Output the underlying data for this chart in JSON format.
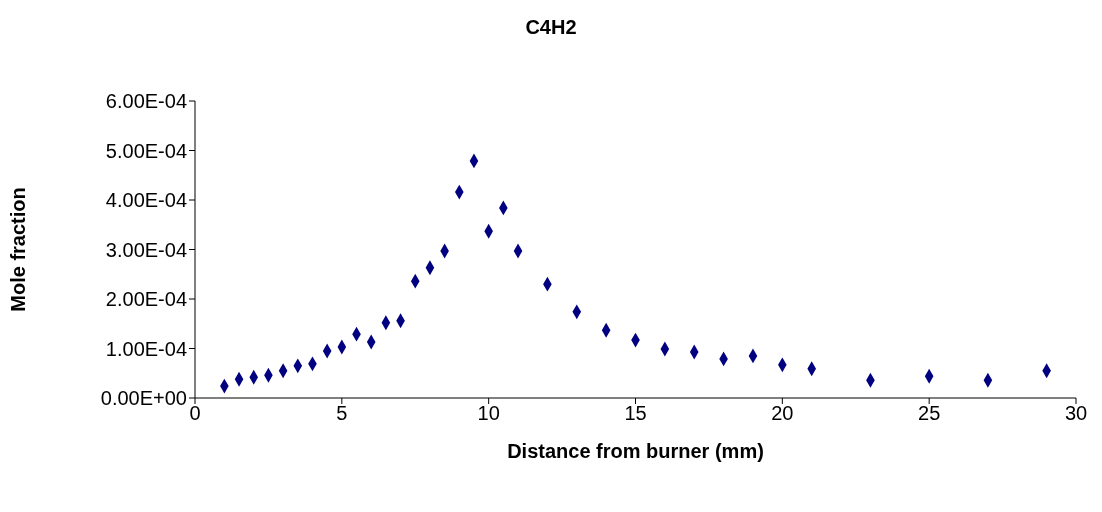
{
  "chart_data": {
    "type": "scatter",
    "title": "C4H2",
    "xlabel": "Distance from burner (mm)",
    "ylabel": "Mole fraction",
    "x": [
      1,
      1.5,
      2,
      2.5,
      3,
      3.5,
      4,
      4.5,
      5,
      5.5,
      6,
      6.5,
      7,
      7.5,
      8,
      8.5,
      9,
      9.5,
      10,
      10.5,
      11,
      12,
      13,
      14,
      15,
      16,
      17,
      18,
      19,
      20,
      21,
      23,
      25,
      27,
      29
    ],
    "series": [
      {
        "color": "#000080",
        "values": [
          2.4e-05,
          3.8e-05,
          4.2e-05,
          4.6e-05,
          5.5e-05,
          6.5e-05,
          6.9e-05,
          9.5e-05,
          0.000103,
          0.000129,
          0.000113,
          0.000152,
          0.000156,
          0.000236,
          0.000263,
          0.000297,
          0.000416,
          0.000479,
          0.000337,
          0.000384,
          0.000297,
          0.00023,
          0.000174,
          0.000137,
          0.000117,
          9.9e-05,
          9.3e-05,
          7.9e-05,
          8.5e-05,
          6.7e-05,
          5.9e-05,
          3.6e-05,
          4.4e-05,
          3.6e-05,
          5.5e-05
        ]
      }
    ],
    "xlim": [
      0,
      30
    ],
    "xticks": [
      0,
      5,
      10,
      15,
      20,
      25,
      30
    ],
    "ylim": [
      0,
      0.0006
    ],
    "yticks": [
      {
        "value": 0,
        "label": "0.00E+00"
      },
      {
        "value": 0.0001,
        "label": "1.00E-04"
      },
      {
        "value": 0.0002,
        "label": "2.00E-04"
      },
      {
        "value": 0.0003,
        "label": "3.00E-04"
      },
      {
        "value": 0.0004,
        "label": "4.00E-04"
      },
      {
        "value": 0.0005,
        "label": "5.00E-04"
      },
      {
        "value": 0.0006,
        "label": "6.00E-04"
      }
    ],
    "grid": false,
    "legend": false,
    "marker": "diamond"
  }
}
